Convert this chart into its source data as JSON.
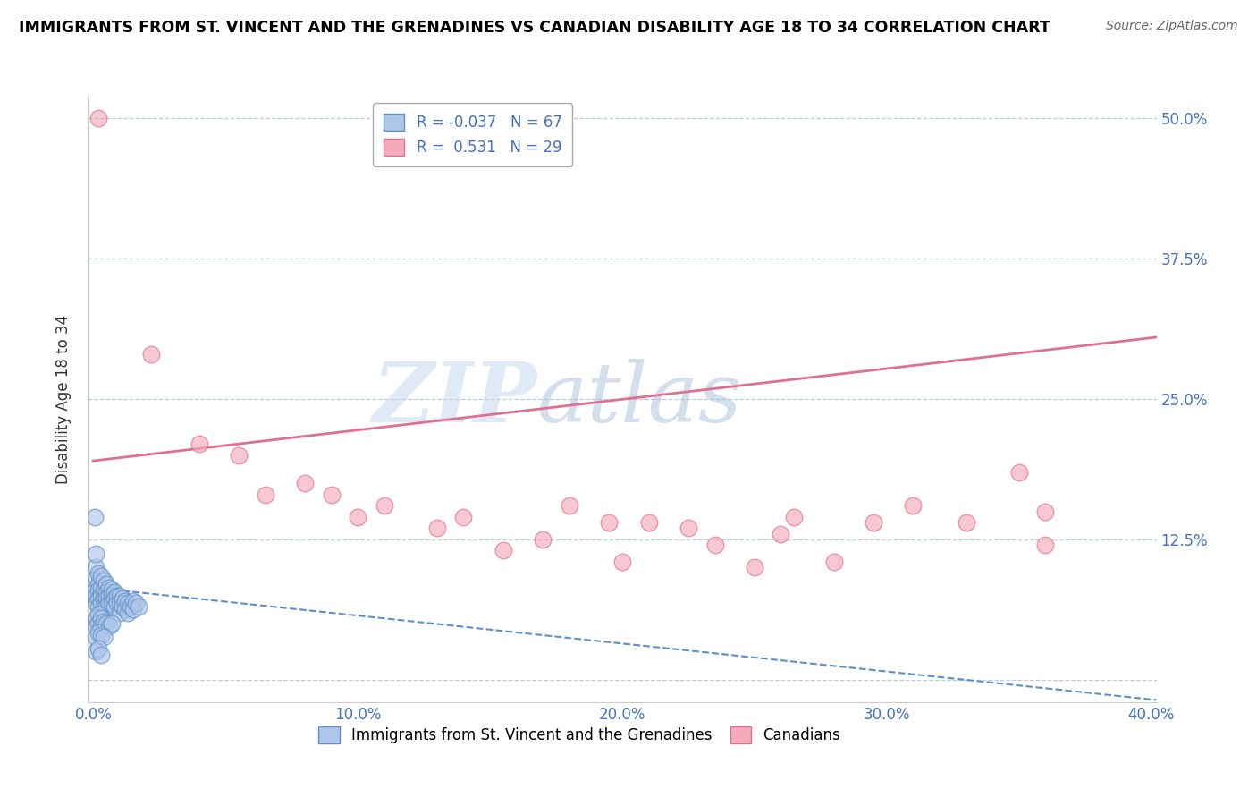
{
  "title": "IMMIGRANTS FROM ST. VINCENT AND THE GRENADINES VS CANADIAN DISABILITY AGE 18 TO 34 CORRELATION CHART",
  "source": "Source: ZipAtlas.com",
  "ylabel": "Disability Age 18 to 34",
  "xlim": [
    -0.002,
    0.402
  ],
  "ylim": [
    -0.02,
    0.52
  ],
  "xticks": [
    0.0,
    0.1,
    0.2,
    0.3,
    0.4
  ],
  "yticks": [
    0.0,
    0.125,
    0.25,
    0.375,
    0.5
  ],
  "xtick_labels": [
    "0.0%",
    "10.0%",
    "20.0%",
    "30.0%",
    "40.0%"
  ],
  "ytick_labels_right": [
    "",
    "12.5%",
    "25.0%",
    "37.5%",
    "50.0%"
  ],
  "blue_color": "#AEC6E8",
  "pink_color": "#F4AABB",
  "blue_edge": "#5C8FC8",
  "pink_edge": "#E07090",
  "blue_trend_color": "#5C8FC8",
  "pink_trend_color": "#E07090",
  "R_blue": -0.037,
  "N_blue": 67,
  "R_pink": 0.531,
  "N_pink": 29,
  "legend_blue": "Immigrants from St. Vincent and the Grenadines",
  "legend_pink": "Canadians",
  "watermark_zip": "ZIP",
  "watermark_atlas": "atlas",
  "blue_scatter_x": [
    0.0005,
    0.001,
    0.001,
    0.001,
    0.001,
    0.001,
    0.001,
    0.002,
    0.002,
    0.002,
    0.002,
    0.002,
    0.003,
    0.003,
    0.003,
    0.003,
    0.003,
    0.004,
    0.004,
    0.004,
    0.004,
    0.005,
    0.005,
    0.005,
    0.005,
    0.006,
    0.006,
    0.006,
    0.007,
    0.007,
    0.007,
    0.008,
    0.008,
    0.008,
    0.009,
    0.009,
    0.01,
    0.01,
    0.01,
    0.011,
    0.011,
    0.012,
    0.012,
    0.013,
    0.013,
    0.014,
    0.015,
    0.015,
    0.016,
    0.017,
    0.001,
    0.001,
    0.002,
    0.002,
    0.003,
    0.003,
    0.004,
    0.005,
    0.006,
    0.007,
    0.001,
    0.002,
    0.003,
    0.004,
    0.001,
    0.002,
    0.003
  ],
  "blue_scatter_y": [
    0.145,
    0.1,
    0.112,
    0.09,
    0.082,
    0.075,
    0.068,
    0.095,
    0.085,
    0.08,
    0.072,
    0.065,
    0.092,
    0.082,
    0.075,
    0.068,
    0.06,
    0.088,
    0.08,
    0.072,
    0.065,
    0.085,
    0.078,
    0.072,
    0.065,
    0.082,
    0.075,
    0.068,
    0.08,
    0.075,
    0.068,
    0.078,
    0.072,
    0.065,
    0.075,
    0.068,
    0.075,
    0.068,
    0.06,
    0.072,
    0.065,
    0.07,
    0.063,
    0.068,
    0.06,
    0.065,
    0.07,
    0.063,
    0.068,
    0.065,
    0.055,
    0.048,
    0.058,
    0.05,
    0.055,
    0.048,
    0.052,
    0.05,
    0.048,
    0.05,
    0.038,
    0.042,
    0.04,
    0.038,
    0.025,
    0.028,
    0.022
  ],
  "pink_scatter_x": [
    0.002,
    0.022,
    0.04,
    0.055,
    0.065,
    0.08,
    0.09,
    0.1,
    0.11,
    0.13,
    0.14,
    0.155,
    0.17,
    0.18,
    0.195,
    0.2,
    0.21,
    0.225,
    0.235,
    0.25,
    0.26,
    0.265,
    0.28,
    0.295,
    0.31,
    0.33,
    0.35,
    0.36,
    0.36
  ],
  "pink_scatter_y": [
    0.5,
    0.29,
    0.21,
    0.2,
    0.165,
    0.175,
    0.165,
    0.145,
    0.155,
    0.135,
    0.145,
    0.115,
    0.125,
    0.155,
    0.14,
    0.105,
    0.14,
    0.135,
    0.12,
    0.1,
    0.13,
    0.145,
    0.105,
    0.14,
    0.155,
    0.14,
    0.185,
    0.12,
    0.15
  ],
  "pink_trend_x0": 0.0,
  "pink_trend_y0": 0.195,
  "pink_trend_x1": 0.402,
  "pink_trend_y1": 0.305,
  "blue_trend_x0": 0.0,
  "blue_trend_y0": 0.082,
  "blue_trend_x1": 0.402,
  "blue_trend_y1": -0.018
}
